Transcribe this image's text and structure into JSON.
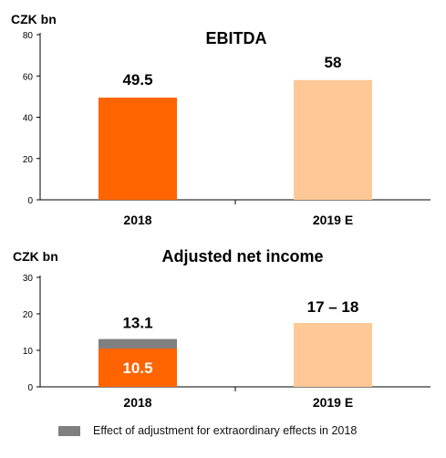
{
  "chart_data": [
    {
      "type": "bar",
      "title": "EBITDA",
      "ylabel": "CZK bn",
      "ylim": [
        0,
        80
      ],
      "yticks": [
        "0",
        "20",
        "40",
        "60",
        "80"
      ],
      "categories": [
        "2018",
        "2019 E"
      ],
      "values": [
        49.5,
        58
      ],
      "data_labels": [
        "49.5",
        "58"
      ],
      "bar_colors": [
        "#FF6400",
        "#FFC896"
      ],
      "grid": false
    },
    {
      "type": "bar",
      "stacked": true,
      "title": "Adjusted net income",
      "ylabel": "CZK bn",
      "ylim": [
        0,
        30
      ],
      "yticks": [
        "0",
        "10",
        "20",
        "30"
      ],
      "categories": [
        "2018",
        "2019 E"
      ],
      "series": [
        {
          "values": [
            10.5,
            17.5
          ],
          "colors": [
            "#FF6400",
            "#FFC896"
          ]
        },
        {
          "name": "Effect of adjustment for extraordinary effects in 2018",
          "values": [
            2.6,
            0
          ],
          "color": "#7F7F7F"
        }
      ],
      "inner_labels": [
        "10.5",
        ""
      ],
      "top_labels": [
        "13.1",
        "17 – 18"
      ],
      "grid": false,
      "legend_position": "bottom-left"
    }
  ]
}
